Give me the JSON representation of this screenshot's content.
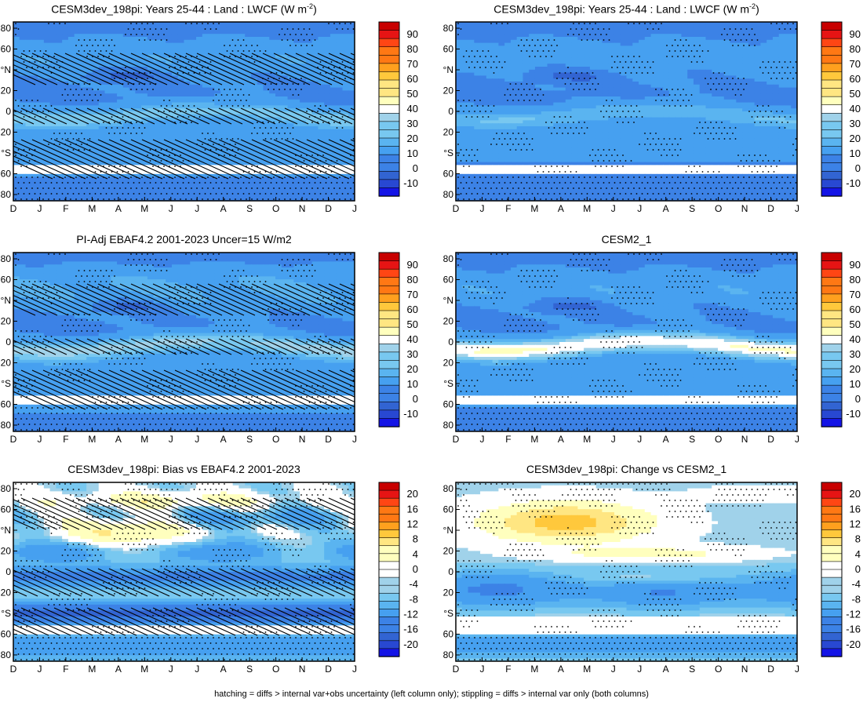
{
  "footer_note": "hatching = diffs > internal var+obs uncertainty (left column only); stippling = diffs > internal var only (both columns)",
  "colors": {
    "abs_levels": [
      "#1414e6",
      "#2848d2",
      "#3264d2",
      "#3c82e6",
      "#46a0f0",
      "#5ab4f0",
      "#78c8f0",
      "#a0d2ea",
      "#ffffff",
      "#ffffbe",
      "#ffe682",
      "#ffc83c",
      "#ffa01e",
      "#ff7814",
      "#ff4614",
      "#e61414",
      "#c80000"
    ],
    "diff_levels": [
      "#1414e6",
      "#2848d2",
      "#3264d2",
      "#3c82e6",
      "#46a0f0",
      "#5ab4f0",
      "#78c8f0",
      "#a0d2ea",
      "#ffffff",
      "#ffffff",
      "#ffffbe",
      "#ffe682",
      "#ffc83c",
      "#ffa01e",
      "#ff7814",
      "#ff4614",
      "#e61414",
      "#c80000"
    ]
  },
  "chart_data": [
    {
      "type": "heatmap",
      "title_main": "CESM3dev_198pi: Years 25-44 : Land : LWCF (W m",
      "title_sup": "-2",
      "title_end": ")",
      "x_tick_labels": [
        "D",
        "J",
        "F",
        "M",
        "A",
        "M",
        "J",
        "J",
        "A",
        "S",
        "O",
        "N",
        "D",
        "J"
      ],
      "y_tick_labels": [
        "80",
        "60",
        "°N",
        "20",
        "0",
        "20",
        "°S",
        "60",
        "80"
      ],
      "ylim": [
        -90,
        90
      ],
      "colorbar_labels": [
        "90",
        "80",
        "70",
        "60",
        "50",
        "40",
        "30",
        "20",
        "10",
        "0",
        "-10"
      ],
      "colorbar_levels": [
        -15,
        -10,
        -5,
        0,
        5,
        10,
        15,
        20,
        25,
        30,
        35,
        40,
        45,
        50,
        55,
        60,
        65,
        70,
        75,
        80,
        85,
        90,
        95
      ],
      "hatching": true,
      "field": {
        "kind": "abs",
        "itcz_peak": 52,
        "itcz_amp": 0.9,
        "trop_base": 30,
        "nh_storm": 18,
        "sh_min": 15,
        "pole": 6,
        "blank": 40
      }
    },
    {
      "type": "heatmap",
      "title_main": "CESM3dev_198pi: Years 25-44 : Land : LWCF (W m",
      "title_sup": "-2",
      "title_end": ")",
      "x_tick_labels": [
        "D",
        "J",
        "F",
        "M",
        "A",
        "M",
        "J",
        "J",
        "A",
        "S",
        "O",
        "N",
        "D",
        "J"
      ],
      "y_tick_labels": [
        "80",
        "60",
        "°N",
        "20",
        "0",
        "20",
        "°S",
        "60",
        "80"
      ],
      "ylim": [
        -90,
        90
      ],
      "colorbar_labels": [
        "90",
        "80",
        "70",
        "60",
        "50",
        "40",
        "30",
        "20",
        "10",
        "0",
        "-10"
      ],
      "colorbar_levels": [
        -15,
        -10,
        -5,
        0,
        5,
        10,
        15,
        20,
        25,
        30,
        35,
        40,
        45,
        50,
        55,
        60,
        65,
        70,
        75,
        80,
        85,
        90,
        95
      ],
      "hatching": false,
      "field": {
        "kind": "abs",
        "itcz_peak": 50,
        "itcz_amp": 0.8,
        "trop_base": 28,
        "nh_storm": 17,
        "sh_min": 14,
        "pole": 6,
        "blank": 40
      }
    },
    {
      "type": "heatmap",
      "title_main": "PI-Adj EBAF4.2 2001-2023 Uncer=15 W/m2",
      "title_sup": "",
      "title_end": "",
      "x_tick_labels": [
        "D",
        "J",
        "F",
        "M",
        "A",
        "M",
        "J",
        "J",
        "A",
        "S",
        "O",
        "N",
        "D",
        "J"
      ],
      "y_tick_labels": [
        "80",
        "60",
        "°N",
        "20",
        "0",
        "20",
        "°S",
        "60",
        "80"
      ],
      "ylim": [
        -90,
        90
      ],
      "colorbar_labels": [
        "90",
        "80",
        "70",
        "60",
        "50",
        "40",
        "30",
        "20",
        "10",
        "0",
        "-10"
      ],
      "colorbar_levels": [
        -15,
        -10,
        -5,
        0,
        5,
        10,
        15,
        20,
        25,
        30,
        35,
        40,
        45,
        50,
        55,
        60,
        65,
        70,
        75,
        80,
        85,
        90,
        95
      ],
      "hatching": true,
      "field": {
        "kind": "abs",
        "itcz_peak": 56,
        "itcz_amp": 1.0,
        "trop_base": 32,
        "nh_storm": 22,
        "sh_min": 20,
        "pole": 8,
        "blank": 40
      }
    },
    {
      "type": "heatmap",
      "title_main": "CESM2_1",
      "title_sup": "",
      "title_end": "",
      "x_tick_labels": [
        "D",
        "J",
        "F",
        "M",
        "A",
        "M",
        "J",
        "J",
        "A",
        "S",
        "O",
        "N",
        "D",
        "J"
      ],
      "y_tick_labels": [
        "80",
        "60",
        "°N",
        "20",
        "0",
        "20",
        "°S",
        "60",
        "80"
      ],
      "ylim": [
        -90,
        90
      ],
      "colorbar_labels": [
        "90",
        "80",
        "70",
        "60",
        "50",
        "40",
        "30",
        "20",
        "10",
        "0",
        "-10"
      ],
      "colorbar_levels": [
        -15,
        -10,
        -5,
        0,
        5,
        10,
        15,
        20,
        25,
        30,
        35,
        40,
        45,
        50,
        55,
        60,
        65,
        70,
        75,
        80,
        85,
        90,
        95
      ],
      "hatching": false,
      "field": {
        "kind": "abs",
        "itcz_peak": 62,
        "itcz_amp": 1.0,
        "trop_base": 30,
        "nh_storm": 18,
        "sh_min": 16,
        "pole": 6,
        "blank": 40
      }
    },
    {
      "type": "heatmap",
      "title_main": "CESM3dev_198pi: Bias vs EBAF4.2 2001-2023",
      "title_sup": "",
      "title_end": "",
      "x_tick_labels": [
        "D",
        "J",
        "F",
        "M",
        "A",
        "M",
        "J",
        "J",
        "A",
        "S",
        "O",
        "N",
        "D",
        "J"
      ],
      "y_tick_labels": [
        "80",
        "60",
        "°N",
        "20",
        "0",
        "20",
        "°S",
        "60",
        "80"
      ],
      "ylim": [
        -90,
        90
      ],
      "colorbar_labels": [
        "20",
        "16",
        "12",
        "8",
        "4",
        "0",
        "-4",
        "-8",
        "-12",
        "-16",
        "-20"
      ],
      "colorbar_levels": [
        -24,
        -22,
        -20,
        -18,
        -16,
        -14,
        -12,
        -10,
        -8,
        -6,
        -4,
        -2,
        0,
        2,
        4,
        6,
        8,
        10,
        12,
        14,
        16,
        18,
        20,
        22,
        24
      ],
      "hatching": true,
      "field": {
        "kind": "bias"
      }
    },
    {
      "type": "heatmap",
      "title_main": "CESM3dev_198pi: Change vs CESM2_1",
      "title_sup": "",
      "title_end": "",
      "x_tick_labels": [
        "D",
        "J",
        "F",
        "M",
        "A",
        "M",
        "J",
        "J",
        "A",
        "S",
        "O",
        "N",
        "D",
        "J"
      ],
      "y_tick_labels": [
        "80",
        "60",
        "°N",
        "20",
        "0",
        "20",
        "°S",
        "60",
        "80"
      ],
      "ylim": [
        -90,
        90
      ],
      "colorbar_labels": [
        "20",
        "16",
        "12",
        "8",
        "4",
        "0",
        "-4",
        "-8",
        "-12",
        "-16",
        "-20"
      ],
      "colorbar_levels": [
        -24,
        -22,
        -20,
        -18,
        -16,
        -14,
        -12,
        -10,
        -8,
        -6,
        -4,
        -2,
        0,
        2,
        4,
        6,
        8,
        10,
        12,
        14,
        16,
        18,
        20,
        22,
        24
      ],
      "hatching": false,
      "field": {
        "kind": "change"
      }
    }
  ]
}
